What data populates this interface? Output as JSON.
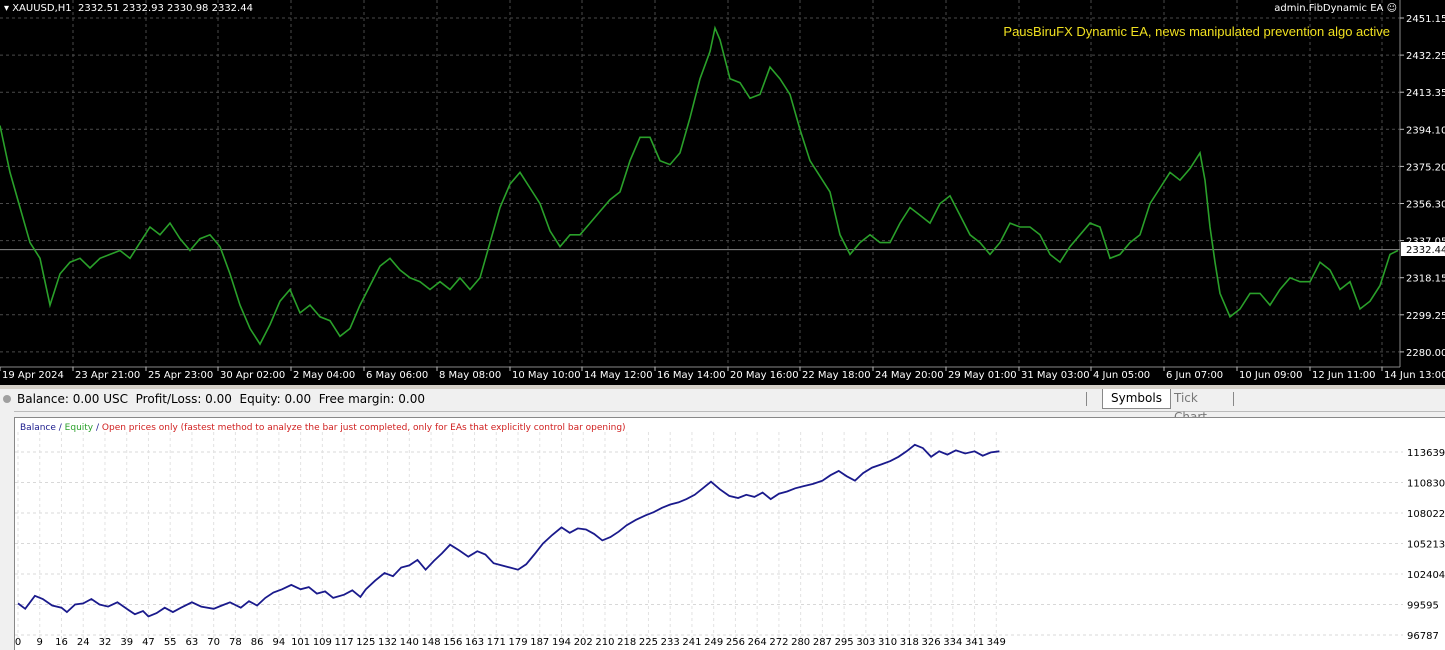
{
  "price_chart": {
    "header": "XAUUSD,H1  2332.51 2332.93 2330.98 2332.44",
    "ea_label": "admin.FibDynamic EA",
    "annotation": "PausBiruFX Dynamic EA, news manipulated prevention algo active",
    "current_price": "2332.44",
    "y_labels": [
      "2451.15",
      "2432.25",
      "2413.35",
      "2394.10",
      "2375.20",
      "2356.30",
      "2337.05",
      "2318.15",
      "2299.25",
      "2280.00"
    ],
    "x_labels": [
      "19 Apr 2024",
      "23 Apr 21:00",
      "25 Apr 23:00",
      "30 Apr 02:00",
      "2 May 04:00",
      "6 May 06:00",
      "8 May 08:00",
      "10 May 10:00",
      "14 May 12:00",
      "16 May 14:00",
      "20 May 16:00",
      "22 May 18:00",
      "24 May 20:00",
      "29 May 01:00",
      "31 May 03:00",
      "4 Jun 05:00",
      "6 Jun 07:00",
      "10 Jun 09:00",
      "12 Jun 11:00",
      "14 Jun 13:00"
    ],
    "colors": {
      "candles": "#2aa02a",
      "background": "#000000",
      "grid": "#4a4a4a",
      "annotation": "#f0e020"
    },
    "series_points": [
      [
        0,
        2396
      ],
      [
        5,
        2384
      ],
      [
        10,
        2372
      ],
      [
        20,
        2354
      ],
      [
        30,
        2336
      ],
      [
        40,
        2328
      ],
      [
        50,
        2304
      ],
      [
        60,
        2320
      ],
      [
        70,
        2326
      ],
      [
        80,
        2328
      ],
      [
        90,
        2323
      ],
      [
        100,
        2328
      ],
      [
        110,
        2330
      ],
      [
        120,
        2332
      ],
      [
        130,
        2328
      ],
      [
        140,
        2336
      ],
      [
        150,
        2344
      ],
      [
        160,
        2340
      ],
      [
        170,
        2346
      ],
      [
        180,
        2338
      ],
      [
        190,
        2332
      ],
      [
        200,
        2338
      ],
      [
        210,
        2340
      ],
      [
        220,
        2334
      ],
      [
        230,
        2320
      ],
      [
        240,
        2304
      ],
      [
        250,
        2292
      ],
      [
        260,
        2284
      ],
      [
        270,
        2294
      ],
      [
        280,
        2306
      ],
      [
        290,
        2312
      ],
      [
        300,
        2300
      ],
      [
        310,
        2304
      ],
      [
        320,
        2298
      ],
      [
        330,
        2296
      ],
      [
        340,
        2288
      ],
      [
        350,
        2292
      ],
      [
        360,
        2304
      ],
      [
        370,
        2314
      ],
      [
        380,
        2324
      ],
      [
        390,
        2328
      ],
      [
        400,
        2322
      ],
      [
        410,
        2318
      ],
      [
        420,
        2316
      ],
      [
        430,
        2312
      ],
      [
        440,
        2316
      ],
      [
        450,
        2312
      ],
      [
        460,
        2318
      ],
      [
        470,
        2312
      ],
      [
        480,
        2318
      ],
      [
        490,
        2336
      ],
      [
        500,
        2354
      ],
      [
        510,
        2366
      ],
      [
        520,
        2372
      ],
      [
        530,
        2364
      ],
      [
        540,
        2356
      ],
      [
        550,
        2342
      ],
      [
        560,
        2334
      ],
      [
        570,
        2340
      ],
      [
        580,
        2340
      ],
      [
        590,
        2346
      ],
      [
        600,
        2352
      ],
      [
        610,
        2358
      ],
      [
        620,
        2362
      ],
      [
        630,
        2378
      ],
      [
        640,
        2390
      ],
      [
        650,
        2390
      ],
      [
        660,
        2378
      ],
      [
        670,
        2376
      ],
      [
        680,
        2382
      ],
      [
        690,
        2400
      ],
      [
        700,
        2420
      ],
      [
        710,
        2434
      ],
      [
        715,
        2446
      ],
      [
        720,
        2440
      ],
      [
        730,
        2420
      ],
      [
        740,
        2418
      ],
      [
        750,
        2410
      ],
      [
        760,
        2412
      ],
      [
        770,
        2426
      ],
      [
        780,
        2420
      ],
      [
        790,
        2412
      ],
      [
        800,
        2394
      ],
      [
        810,
        2378
      ],
      [
        820,
        2370
      ],
      [
        830,
        2362
      ],
      [
        840,
        2340
      ],
      [
        850,
        2330
      ],
      [
        860,
        2336
      ],
      [
        870,
        2340
      ],
      [
        880,
        2336
      ],
      [
        890,
        2336
      ],
      [
        900,
        2346
      ],
      [
        910,
        2354
      ],
      [
        920,
        2350
      ],
      [
        930,
        2346
      ],
      [
        940,
        2356
      ],
      [
        950,
        2360
      ],
      [
        960,
        2350
      ],
      [
        970,
        2340
      ],
      [
        980,
        2336
      ],
      [
        990,
        2330
      ],
      [
        1000,
        2336
      ],
      [
        1010,
        2346
      ],
      [
        1020,
        2344
      ],
      [
        1030,
        2344
      ],
      [
        1040,
        2340
      ],
      [
        1050,
        2330
      ],
      [
        1060,
        2326
      ],
      [
        1070,
        2334
      ],
      [
        1080,
        2340
      ],
      [
        1090,
        2346
      ],
      [
        1100,
        2344
      ],
      [
        1110,
        2328
      ],
      [
        1120,
        2330
      ],
      [
        1130,
        2336
      ],
      [
        1140,
        2340
      ],
      [
        1150,
        2356
      ],
      [
        1160,
        2364
      ],
      [
        1170,
        2372
      ],
      [
        1180,
        2368
      ],
      [
        1190,
        2374
      ],
      [
        1200,
        2382
      ],
      [
        1205,
        2368
      ],
      [
        1210,
        2344
      ],
      [
        1215,
        2326
      ],
      [
        1220,
        2310
      ],
      [
        1230,
        2298
      ],
      [
        1240,
        2302
      ],
      [
        1250,
        2310
      ],
      [
        1260,
        2310
      ],
      [
        1270,
        2304
      ],
      [
        1280,
        2312
      ],
      [
        1290,
        2318
      ],
      [
        1300,
        2316
      ],
      [
        1310,
        2316
      ],
      [
        1320,
        2326
      ],
      [
        1330,
        2322
      ],
      [
        1340,
        2312
      ],
      [
        1350,
        2316
      ],
      [
        1360,
        2302
      ],
      [
        1370,
        2306
      ],
      [
        1380,
        2314
      ],
      [
        1390,
        2330
      ],
      [
        1398,
        2332
      ]
    ]
  },
  "account_bar": {
    "text": "Balance: 0.00 USC  Profit/Loss: 0.00  Equity: 0.00  Free margin: 0.00",
    "tabs": [
      "Symbols",
      "Tick Chart"
    ]
  },
  "test_chart": {
    "legend": {
      "balance": "Balance",
      "sep1": " / ",
      "equity": "Equity",
      "sep2": " / ",
      "note": "Open prices only (fastest method to analyze the bar just completed, only for EAs that explicitly control bar opening)"
    },
    "y_labels": [
      "113639",
      "110830",
      "108022",
      "105213",
      "102404",
      "99595",
      "96787"
    ],
    "x_labels": [
      "0",
      "9",
      "16",
      "24",
      "32",
      "39",
      "47",
      "55",
      "63",
      "70",
      "78",
      "86",
      "94",
      "101",
      "109",
      "117",
      "125",
      "132",
      "140",
      "148",
      "156",
      "163",
      "171",
      "179",
      "187",
      "194",
      "202",
      "210",
      "218",
      "225",
      "233",
      "241",
      "249",
      "256",
      "264",
      "272",
      "280",
      "287",
      "295",
      "303",
      "310",
      "318",
      "326",
      "334",
      "341",
      "349"
    ],
    "colors": {
      "balance": "#1a1a8c",
      "equity": "#2aa02a",
      "note": "#d02020",
      "grid": "#d8d8d8"
    },
    "balance_points": [
      [
        0,
        99700
      ],
      [
        3,
        99200
      ],
      [
        7,
        100400
      ],
      [
        10,
        100100
      ],
      [
        13,
        99500
      ],
      [
        16,
        99300
      ],
      [
        18,
        98900
      ],
      [
        21,
        99600
      ],
      [
        24,
        99700
      ],
      [
        27,
        100100
      ],
      [
        30,
        99600
      ],
      [
        33,
        99400
      ],
      [
        36,
        99800
      ],
      [
        39,
        99200
      ],
      [
        42,
        98700
      ],
      [
        45,
        99000
      ],
      [
        47,
        98500
      ],
      [
        50,
        98800
      ],
      [
        53,
        99300
      ],
      [
        56,
        98900
      ],
      [
        59,
        99300
      ],
      [
        63,
        99800
      ],
      [
        66,
        99400
      ],
      [
        70,
        99200
      ],
      [
        73,
        99500
      ],
      [
        76,
        99800
      ],
      [
        80,
        99300
      ],
      [
        83,
        99900
      ],
      [
        86,
        99500
      ],
      [
        89,
        100200
      ],
      [
        92,
        100700
      ],
      [
        95,
        101000
      ],
      [
        98,
        101400
      ],
      [
        101,
        101000
      ],
      [
        104,
        101200
      ],
      [
        107,
        100600
      ],
      [
        110,
        100800
      ],
      [
        113,
        100200
      ],
      [
        117,
        100500
      ],
      [
        120,
        100900
      ],
      [
        123,
        100300
      ],
      [
        125,
        101000
      ],
      [
        128,
        101800
      ],
      [
        131,
        102500
      ],
      [
        134,
        102200
      ],
      [
        137,
        103000
      ],
      [
        140,
        103200
      ],
      [
        143,
        103700
      ],
      [
        146,
        102800
      ],
      [
        149,
        103600
      ],
      [
        152,
        104300
      ],
      [
        155,
        105100
      ],
      [
        158,
        104600
      ],
      [
        161,
        104000
      ],
      [
        164,
        104500
      ],
      [
        167,
        104200
      ],
      [
        170,
        103400
      ],
      [
        173,
        103200
      ],
      [
        176,
        103000
      ],
      [
        179,
        102800
      ],
      [
        182,
        103300
      ],
      [
        185,
        104200
      ],
      [
        188,
        105200
      ],
      [
        191,
        106000
      ],
      [
        194,
        106700
      ],
      [
        197,
        106200
      ],
      [
        200,
        106600
      ],
      [
        203,
        106500
      ],
      [
        206,
        106100
      ],
      [
        209,
        105500
      ],
      [
        212,
        105800
      ],
      [
        215,
        106300
      ],
      [
        218,
        106900
      ],
      [
        221,
        107400
      ],
      [
        224,
        107800
      ],
      [
        227,
        108100
      ],
      [
        230,
        108500
      ],
      [
        233,
        108800
      ],
      [
        236,
        109000
      ],
      [
        239,
        109300
      ],
      [
        242,
        109700
      ],
      [
        245,
        110300
      ],
      [
        248,
        110900
      ],
      [
        251,
        110200
      ],
      [
        254,
        109600
      ],
      [
        257,
        109400
      ],
      [
        260,
        109700
      ],
      [
        263,
        109500
      ],
      [
        266,
        109900
      ],
      [
        269,
        109300
      ],
      [
        272,
        109800
      ],
      [
        275,
        110000
      ],
      [
        278,
        110300
      ],
      [
        281,
        110500
      ],
      [
        284,
        110700
      ],
      [
        287,
        111000
      ],
      [
        290,
        111500
      ],
      [
        293,
        111900
      ],
      [
        296,
        111400
      ],
      [
        299,
        111000
      ],
      [
        302,
        111700
      ],
      [
        305,
        112200
      ],
      [
        308,
        112500
      ],
      [
        311,
        112800
      ],
      [
        314,
        113200
      ],
      [
        317,
        113700
      ],
      [
        320,
        114300
      ],
      [
        323,
        114000
      ],
      [
        326,
        113200
      ],
      [
        329,
        113700
      ],
      [
        332,
        113400
      ],
      [
        335,
        113800
      ],
      [
        338,
        113500
      ],
      [
        341,
        113700
      ],
      [
        344,
        113300
      ],
      [
        347,
        113600
      ],
      [
        350,
        113700
      ]
    ]
  }
}
